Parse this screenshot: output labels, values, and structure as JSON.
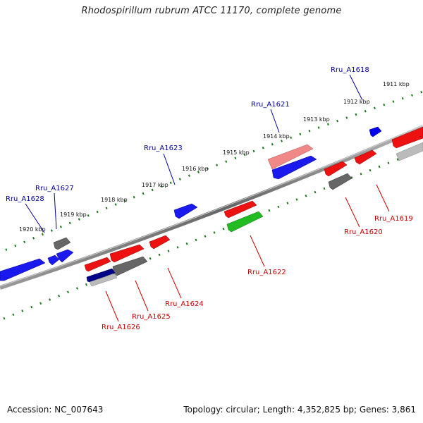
{
  "title": "Rhodospirillum rubrum ATCC 11170, complete genome",
  "footer": {
    "accession": "Accession: NC_007643",
    "stats": "Topology: circular; Length: 4,352,825 bp; Genes: 3,861"
  },
  "colors": {
    "forward_gene": "#0000ee",
    "reverse_gene": "#ee0000",
    "pseudo_gene": "#666666",
    "rna_gene": "#22bb22",
    "label_forward": "#000099",
    "label_reverse": "#cc0000",
    "tick": "#1a7a1a",
    "backbone": "#777777"
  },
  "scale_labels": [
    "1911 kbp",
    "1912 kbp",
    "1913 kbp",
    "1914 kbp",
    "1915 kbp",
    "1916 kbp",
    "1917 kbp",
    "1918 kbp",
    "1919 kbp",
    "1920 kbp"
  ],
  "gene_labels": {
    "Rru_A1618": "Rru_A1618",
    "Rru_A1619": "Rru_A1619",
    "Rru_A1620": "Rru_A1620",
    "Rru_A1621": "Rru_A1621",
    "Rru_A1622": "Rru_A1622",
    "Rru_A1623": "Rru_A1623",
    "Rru_A1624": "Rru_A1624",
    "Rru_A1625": "Rru_A1625",
    "Rru_A1626": "Rru_A1626",
    "Rru_A1627": "Rru_A1627",
    "Rru_A1628": "Rru_A1628"
  }
}
